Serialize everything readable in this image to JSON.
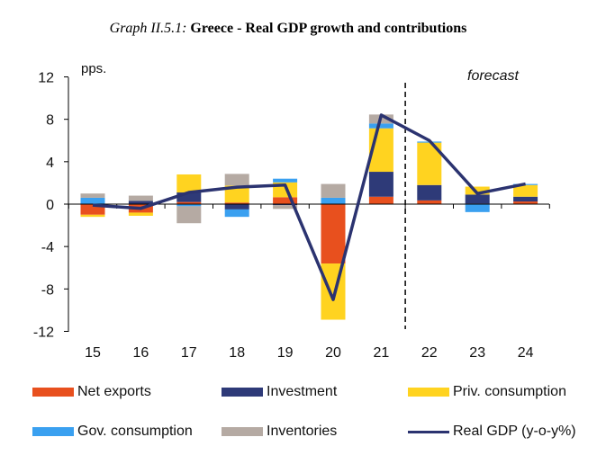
{
  "chart_data": {
    "type": "bar",
    "title_prefix": "Graph II.5.1:",
    "title": "Greece - Real GDP growth and contributions",
    "ylabel": "pps.",
    "annotation": "forecast",
    "forecast_from": "22",
    "categories": [
      "15",
      "16",
      "17",
      "18",
      "19",
      "20",
      "21",
      "22",
      "23",
      "24"
    ],
    "ylim": [
      -12,
      12
    ],
    "yticks": [
      12,
      8,
      4,
      0,
      -4,
      -8,
      -12
    ],
    "stacked": true,
    "grid": false,
    "legend_placement": "bottom",
    "series": [
      {
        "name": "Net exports",
        "color": "#E8501E",
        "values": [
          -1.0,
          -0.8,
          0.2,
          0.15,
          0.65,
          -5.6,
          0.7,
          0.35,
          0.05,
          0.25
        ]
      },
      {
        "name": "Investment",
        "color": "#2E3A78",
        "values": [
          0.0,
          0.3,
          0.9,
          -0.5,
          -0.1,
          0.0,
          2.35,
          1.45,
          0.85,
          0.45
        ]
      },
      {
        "name": "Priv. consumption",
        "color": "#FFD320",
        "values": [
          -0.2,
          -0.3,
          1.7,
          1.6,
          1.4,
          -5.3,
          4.1,
          4.0,
          0.75,
          1.1
        ]
      },
      {
        "name": "Gov. consumption",
        "color": "#3AA0F0",
        "values": [
          0.6,
          0.0,
          -0.2,
          -0.7,
          0.35,
          0.6,
          0.45,
          0.1,
          -0.75,
          0.1
        ]
      },
      {
        "name": "Inventories",
        "color": "#B5AAA3",
        "values": [
          0.4,
          0.5,
          -1.6,
          1.1,
          -0.35,
          1.3,
          0.85,
          0.0,
          0.0,
          0.0
        ]
      }
    ],
    "line": {
      "name": "Real GDP (y-o-y%)",
      "color": "#2B3370",
      "values": [
        -0.1,
        -0.4,
        1.1,
        1.6,
        1.8,
        -9.0,
        8.4,
        6.0,
        1.0,
        1.9
      ]
    }
  }
}
